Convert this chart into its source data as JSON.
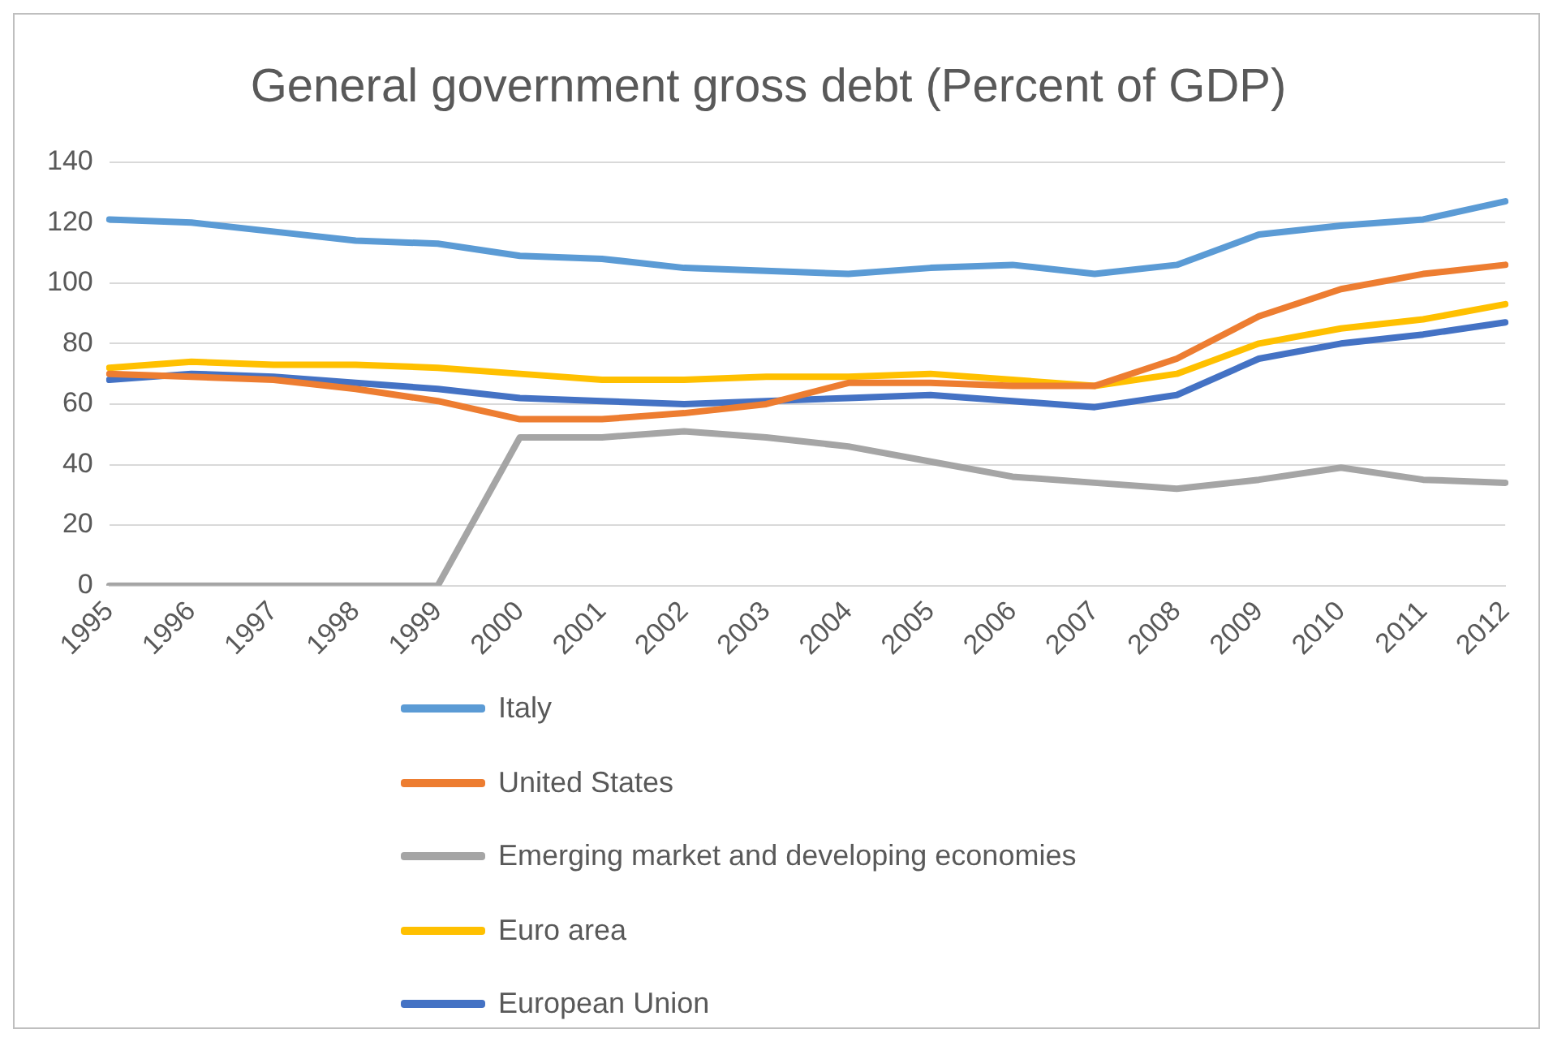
{
  "chart_data": {
    "type": "line",
    "title": "General government gross debt (Percent of GDP)",
    "categories": [
      "1995",
      "1996",
      "1997",
      "1998",
      "1999",
      "2000",
      "2001",
      "2002",
      "2003",
      "2004",
      "2005",
      "2006",
      "2007",
      "2008",
      "2009",
      "2010",
      "2011",
      "2012"
    ],
    "series": [
      {
        "name": "Italy",
        "color": "#5b9bd5",
        "values": [
          121,
          120,
          117,
          114,
          113,
          109,
          108,
          105,
          104,
          103,
          105,
          106,
          103,
          106,
          116,
          119,
          121,
          127
        ]
      },
      {
        "name": "United States",
        "color": "#ed7d31",
        "values": [
          70,
          69,
          68,
          65,
          61,
          55,
          55,
          57,
          60,
          67,
          67,
          66,
          66,
          75,
          89,
          98,
          103,
          106
        ]
      },
      {
        "name": "Emerging market and developing economies",
        "color": "#a5a5a5",
        "values": [
          0,
          0,
          0,
          0,
          0,
          49,
          49,
          51,
          49,
          46,
          41,
          36,
          34,
          32,
          35,
          39,
          35,
          34
        ]
      },
      {
        "name": "Euro area",
        "color": "#ffc000",
        "values": [
          72,
          74,
          73,
          73,
          72,
          70,
          68,
          68,
          69,
          69,
          70,
          68,
          66,
          70,
          80,
          85,
          88,
          93
        ]
      },
      {
        "name": "European Union",
        "color": "#4472c4",
        "values": [
          68,
          70,
          69,
          67,
          65,
          62,
          61,
          60,
          61,
          62,
          63,
          61,
          59,
          63,
          75,
          80,
          83,
          87
        ]
      }
    ],
    "ylim": [
      0,
      140
    ],
    "yticks": [
      0,
      20,
      40,
      60,
      80,
      100,
      120,
      140
    ],
    "grid": "y",
    "legend": "bottom",
    "marker": "none",
    "line_style": "solid"
  }
}
